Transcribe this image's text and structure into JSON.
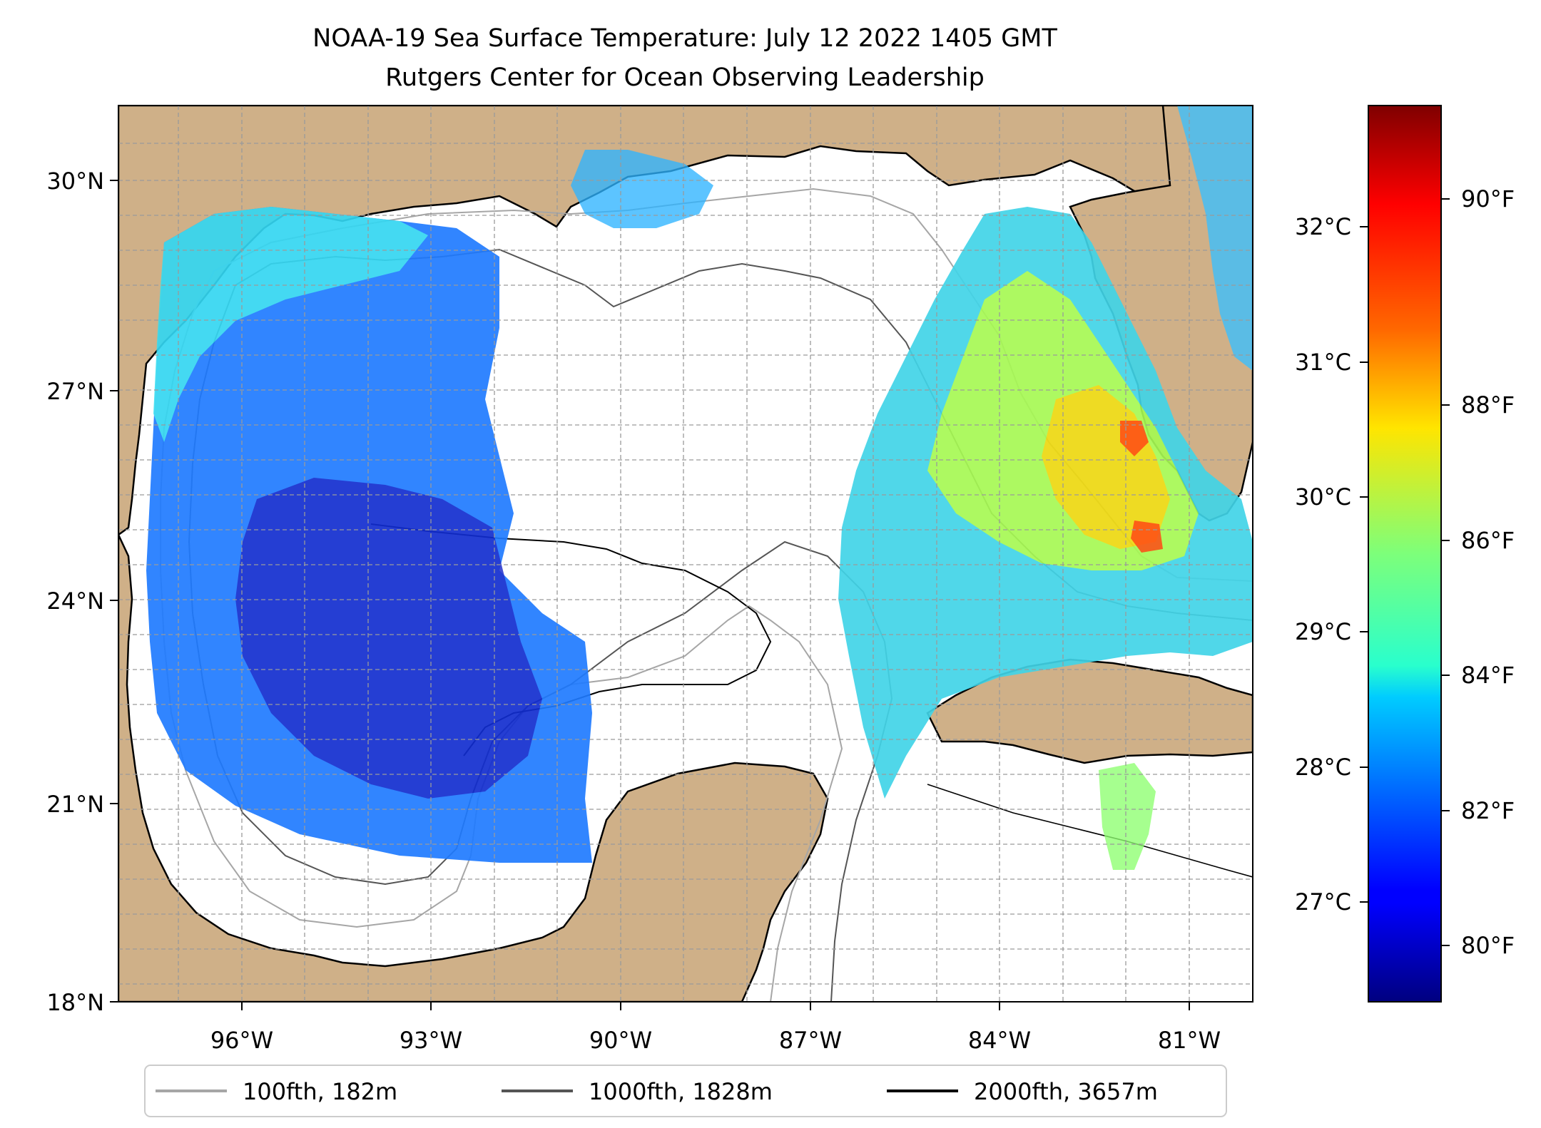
{
  "title": {
    "line1": "NOAA-19 Sea Surface Temperature: July 12 2022 1405 GMT",
    "line2": "Rutgers Center for Ocean Observing Leadership"
  },
  "map": {
    "lat_ticks": [
      "30°N",
      "27°N",
      "24°N",
      "21°N",
      "18°N"
    ],
    "lon_ticks": [
      "96°W",
      "93°W",
      "90°W",
      "87°W",
      "84°W",
      "81°W"
    ],
    "lat_range": [
      18,
      31
    ],
    "lon_range": [
      -98.25,
      -80.4
    ],
    "land_color": "#cfb088",
    "ocean_color": "#ffffff"
  },
  "colorbar": {
    "fahrenheit_ticks": [
      "80°F",
      "82°F",
      "84°F",
      "86°F",
      "88°F",
      "90°F"
    ],
    "celsius_ticks": [
      "27°C",
      "28°C",
      "29°C",
      "30°C",
      "31°C",
      "32°C"
    ],
    "colormap": "jet"
  },
  "legend": {
    "items": [
      {
        "label": "100fth, 182m",
        "color": "#a6a6a6"
      },
      {
        "label": "1000fth, 1828m",
        "color": "#555555"
      },
      {
        "label": "2000fth, 3657m",
        "color": "#000000"
      }
    ]
  }
}
